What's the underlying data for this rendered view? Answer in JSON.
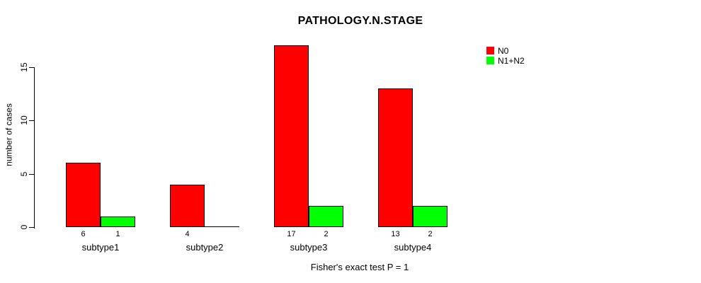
{
  "chart_data": {
    "type": "bar",
    "title": "PATHOLOGY.N.STAGE",
    "ylabel": "number of cases",
    "xlabel": "Fisher's exact test P = 1",
    "categories": [
      "subtype1",
      "subtype2",
      "subtype3",
      "subtype4"
    ],
    "series": [
      {
        "name": "N0",
        "color": "#FF0000",
        "values": [
          6,
          4,
          17,
          13
        ]
      },
      {
        "name": "N1+N2",
        "color": "#00FF00",
        "values": [
          1,
          0,
          2,
          2
        ]
      }
    ],
    "bar_value_labels": [
      [
        "6",
        "1"
      ],
      [
        "4",
        ""
      ],
      [
        "17",
        "2"
      ],
      [
        "13",
        "2"
      ]
    ],
    "yticks": [
      0,
      5,
      10,
      15
    ],
    "ylim": [
      0,
      17.3
    ],
    "grid": false,
    "legend_position": "top-right",
    "axis_color": "#000000",
    "background_color": "#FFFFFF"
  }
}
